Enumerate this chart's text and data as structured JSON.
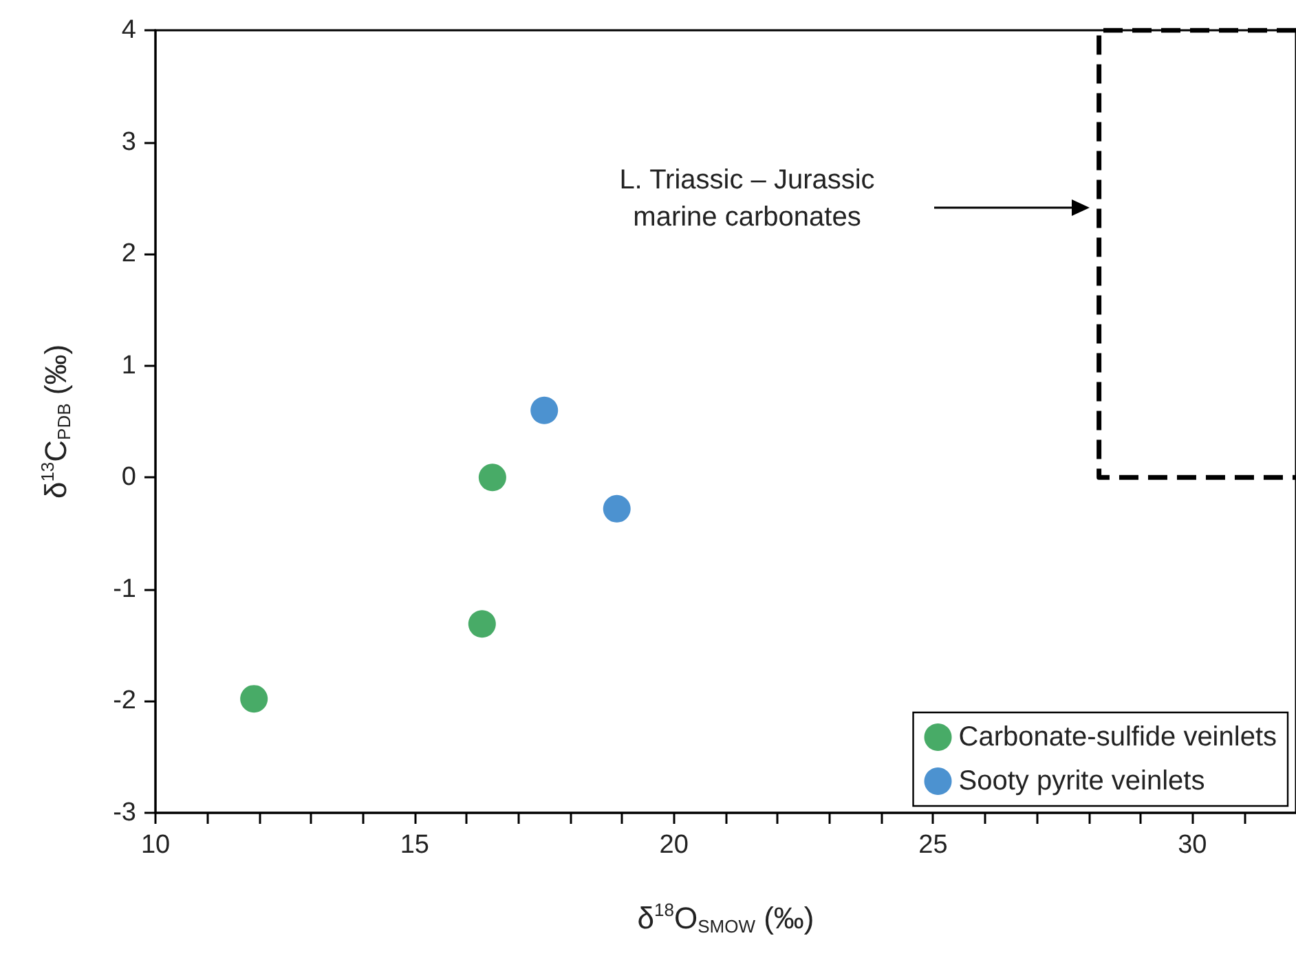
{
  "chart_data": {
    "type": "scatter",
    "xlabel": "δ$^{18}$O$_{SMOW}$ (‰)",
    "ylabel": "δ$^{13}$C$_{PDB}$ (‰)",
    "xlim": [
      10,
      32
    ],
    "ylim": [
      -3,
      4
    ],
    "xticks": [
      10,
      {
        "value": 11,
        "label": null
      },
      {
        "value": 12,
        "label": null
      },
      {
        "value": 13,
        "label": null
      },
      {
        "value": 14,
        "label": null
      },
      15,
      {
        "value": 16,
        "label": null
      },
      {
        "value": 17,
        "label": null
      },
      {
        "value": 18,
        "label": null
      },
      {
        "value": 19,
        "label": null
      },
      20,
      {
        "value": 21,
        "label": null
      },
      {
        "value": 22,
        "label": null
      },
      {
        "value": 23,
        "label": null
      },
      {
        "value": 24,
        "label": null
      },
      25,
      {
        "value": 26,
        "label": null
      },
      {
        "value": 27,
        "label": null
      },
      {
        "value": 28,
        "label": null
      },
      {
        "value": 29,
        "label": null
      },
      30,
      {
        "value": 31,
        "label": null
      }
    ],
    "yticks": [
      -3,
      -2,
      -1,
      0,
      1,
      2,
      3,
      4
    ],
    "grid": false,
    "legend": "bottom right",
    "marker": "circle",
    "series": [
      {
        "name": "Carbonate-sulfide veinlets",
        "color": "#1a9641",
        "x": [
          11.9,
          16.3,
          16.5
        ],
        "values": [
          -1.98,
          -1.31,
          0.0
        ]
      },
      {
        "name": "Sooty pyrite veinlets",
        "color": "#1f77c4",
        "x": [
          17.5,
          18.9
        ],
        "values": [
          0.6,
          -0.28
        ]
      },
      {
        "type": "line",
        "color": "#000000",
        "line_style": "dashed",
        "marker": "none",
        "x": [
          32,
          28.2,
          28.2,
          32
        ],
        "values": [
          4,
          4,
          0,
          0
        ]
      }
    ],
    "annotations": [
      "L. Triassic – Jurassic marine carbonates"
    ]
  }
}
